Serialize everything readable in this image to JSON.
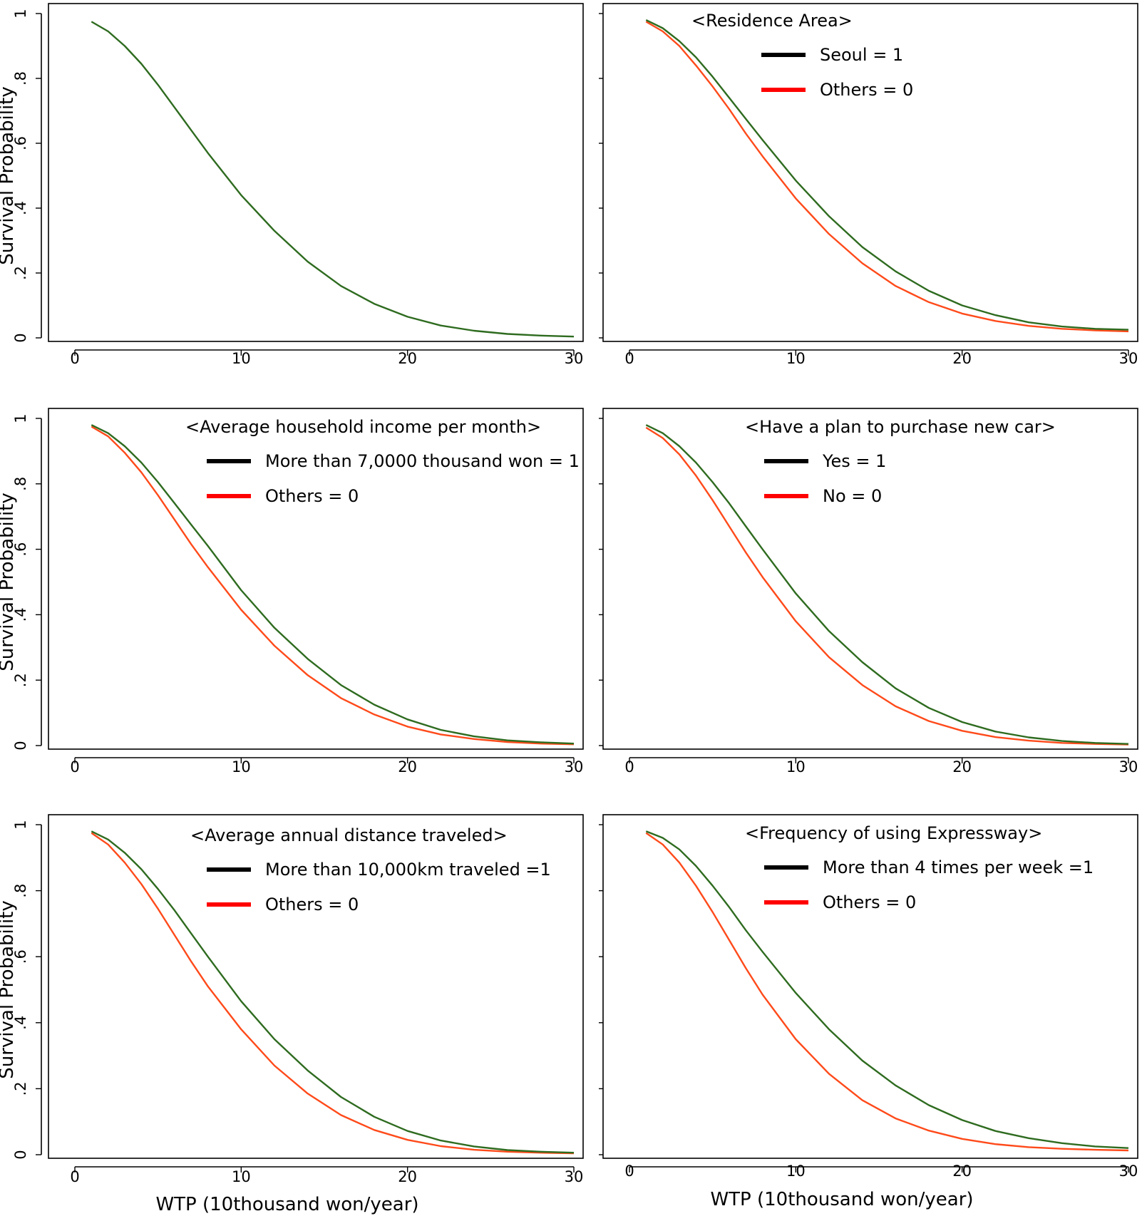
{
  "colors": {
    "series_1": "#2e6b1f",
    "series_0": "#ff4a1a",
    "legend_1": "#000000",
    "legend_0": "#ff0000"
  },
  "chart_data": [
    {
      "type": "line",
      "title": "",
      "xlabel": "",
      "ylabel": "Survival Probability",
      "xlim": [
        0,
        30
      ],
      "ylim": [
        0,
        1
      ],
      "xticks": [
        "0",
        "10",
        "20",
        "30"
      ],
      "yticks": [
        "0",
        ".2",
        ".4",
        ".6",
        ".8",
        "1"
      ],
      "legend": [],
      "series": [
        {
          "x": [
            1,
            2,
            3,
            4,
            5,
            6,
            7,
            8,
            10,
            12,
            14,
            16,
            18,
            20,
            22,
            24,
            26,
            28,
            30
          ],
          "y": [
            0.975,
            0.945,
            0.9,
            0.845,
            0.78,
            0.71,
            0.64,
            0.57,
            0.44,
            0.33,
            0.235,
            0.16,
            0.105,
            0.065,
            0.038,
            0.022,
            0.012,
            0.007,
            0.004
          ]
        }
      ]
    },
    {
      "type": "line",
      "title": "<Residence Area>",
      "xlabel": "",
      "ylabel": "",
      "xlim": [
        0,
        30
      ],
      "ylim": [
        0,
        1
      ],
      "xticks": [
        "0",
        "10",
        "20",
        "30"
      ],
      "yticks": [],
      "legend": [
        "Seoul = 1",
        "Others = 0"
      ],
      "series": [
        {
          "x": [
            1,
            2,
            3,
            4,
            5,
            6,
            7,
            8,
            10,
            12,
            14,
            16,
            18,
            20,
            22,
            24,
            26,
            28,
            30
          ],
          "y": [
            0.98,
            0.955,
            0.915,
            0.865,
            0.805,
            0.74,
            0.675,
            0.61,
            0.485,
            0.375,
            0.28,
            0.205,
            0.145,
            0.1,
            0.07,
            0.048,
            0.035,
            0.028,
            0.025
          ]
        },
        {
          "x": [
            1,
            2,
            3,
            4,
            5,
            6,
            7,
            8,
            10,
            12,
            14,
            16,
            18,
            20,
            22,
            24,
            26,
            28,
            30
          ],
          "y": [
            0.975,
            0.945,
            0.9,
            0.84,
            0.775,
            0.705,
            0.63,
            0.56,
            0.43,
            0.32,
            0.23,
            0.16,
            0.11,
            0.075,
            0.052,
            0.037,
            0.028,
            0.023,
            0.02
          ]
        }
      ]
    },
    {
      "type": "line",
      "title": "<Average household income per month>",
      "xlabel": "",
      "ylabel": "Survival Probability",
      "xlim": [
        0,
        30
      ],
      "ylim": [
        0,
        1
      ],
      "xticks": [
        "0",
        "10",
        "20",
        "30"
      ],
      "yticks": [
        "0",
        ".2",
        ".4",
        ".6",
        ".8",
        "1"
      ],
      "legend": [
        "More than 7,0000 thousand won = 1",
        "Others = 0"
      ],
      "series": [
        {
          "x": [
            1,
            2,
            3,
            4,
            5,
            6,
            7,
            8,
            10,
            12,
            14,
            16,
            18,
            20,
            22,
            24,
            26,
            28,
            30
          ],
          "y": [
            0.98,
            0.955,
            0.915,
            0.865,
            0.805,
            0.74,
            0.675,
            0.61,
            0.475,
            0.36,
            0.265,
            0.185,
            0.125,
            0.08,
            0.048,
            0.028,
            0.016,
            0.01,
            0.006
          ]
        },
        {
          "x": [
            1,
            2,
            3,
            4,
            5,
            6,
            7,
            8,
            10,
            12,
            14,
            16,
            18,
            20,
            22,
            24,
            26,
            28,
            30
          ],
          "y": [
            0.975,
            0.945,
            0.895,
            0.835,
            0.765,
            0.69,
            0.615,
            0.545,
            0.415,
            0.305,
            0.215,
            0.145,
            0.095,
            0.058,
            0.034,
            0.02,
            0.011,
            0.006,
            0.004
          ]
        }
      ]
    },
    {
      "type": "line",
      "title": "<Have a plan to purchase new car>",
      "xlabel": "",
      "ylabel": "",
      "xlim": [
        0,
        30
      ],
      "ylim": [
        0,
        1
      ],
      "xticks": [
        "0",
        "10",
        "20",
        "30"
      ],
      "yticks": [],
      "legend": [
        "Yes = 1",
        "No = 0"
      ],
      "series": [
        {
          "x": [
            1,
            2,
            3,
            4,
            5,
            6,
            7,
            8,
            10,
            12,
            14,
            16,
            18,
            20,
            22,
            24,
            26,
            28,
            30
          ],
          "y": [
            0.98,
            0.955,
            0.915,
            0.865,
            0.805,
            0.74,
            0.67,
            0.6,
            0.465,
            0.35,
            0.255,
            0.175,
            0.115,
            0.072,
            0.043,
            0.025,
            0.014,
            0.008,
            0.005
          ]
        },
        {
          "x": [
            1,
            2,
            3,
            4,
            5,
            6,
            7,
            8,
            10,
            12,
            14,
            16,
            18,
            20,
            22,
            24,
            26,
            28,
            30
          ],
          "y": [
            0.972,
            0.94,
            0.89,
            0.825,
            0.75,
            0.67,
            0.59,
            0.515,
            0.38,
            0.27,
            0.185,
            0.12,
            0.075,
            0.045,
            0.026,
            0.015,
            0.008,
            0.005,
            0.003
          ]
        }
      ]
    },
    {
      "type": "line",
      "title": "<Average annual distance traveled>",
      "xlabel": "WTP (10thousand won/year)",
      "ylabel": "Survival Probability",
      "xlim": [
        0,
        30
      ],
      "ylim": [
        0,
        1
      ],
      "xticks": [
        "0",
        "10",
        "20",
        "30"
      ],
      "yticks": [
        "0",
        ".2",
        ".4",
        ".6",
        ".8",
        "1"
      ],
      "legend": [
        "More than 10,000km traveled =1",
        "Others = 0"
      ],
      "series": [
        {
          "x": [
            1,
            2,
            3,
            4,
            5,
            6,
            7,
            8,
            10,
            12,
            14,
            16,
            18,
            20,
            22,
            24,
            26,
            28,
            30
          ],
          "y": [
            0.98,
            0.955,
            0.915,
            0.865,
            0.805,
            0.74,
            0.67,
            0.6,
            0.465,
            0.35,
            0.255,
            0.175,
            0.115,
            0.072,
            0.043,
            0.025,
            0.014,
            0.009,
            0.006
          ]
        },
        {
          "x": [
            1,
            2,
            3,
            4,
            5,
            6,
            7,
            8,
            10,
            12,
            14,
            16,
            18,
            20,
            22,
            24,
            26,
            28,
            30
          ],
          "y": [
            0.975,
            0.94,
            0.885,
            0.82,
            0.745,
            0.665,
            0.585,
            0.51,
            0.38,
            0.27,
            0.185,
            0.12,
            0.075,
            0.045,
            0.026,
            0.015,
            0.009,
            0.006,
            0.004
          ]
        }
      ]
    },
    {
      "type": "line",
      "title": "<Frequency of using Expressway>",
      "xlabel": "WTP (10thousand won/year)",
      "ylabel": "",
      "xlim": [
        0,
        30
      ],
      "ylim": [
        0,
        1
      ],
      "xticks": [
        "0",
        "10",
        "20",
        "30"
      ],
      "yticks": [],
      "legend": [
        "More than 4 times per week =1",
        "Others = 0"
      ],
      "series": [
        {
          "x": [
            1,
            2,
            3,
            4,
            5,
            6,
            7,
            8,
            10,
            12,
            14,
            16,
            18,
            20,
            22,
            24,
            26,
            28,
            30
          ],
          "y": [
            0.98,
            0.96,
            0.925,
            0.875,
            0.815,
            0.75,
            0.68,
            0.615,
            0.49,
            0.38,
            0.285,
            0.21,
            0.15,
            0.105,
            0.072,
            0.05,
            0.035,
            0.025,
            0.02
          ]
        },
        {
          "x": [
            1,
            2,
            3,
            4,
            5,
            6,
            7,
            8,
            10,
            12,
            14,
            16,
            18,
            20,
            22,
            24,
            26,
            28,
            30
          ],
          "y": [
            0.975,
            0.94,
            0.885,
            0.815,
            0.735,
            0.65,
            0.565,
            0.485,
            0.35,
            0.245,
            0.165,
            0.11,
            0.073,
            0.048,
            0.032,
            0.023,
            0.018,
            0.015,
            0.013
          ]
        }
      ]
    }
  ]
}
